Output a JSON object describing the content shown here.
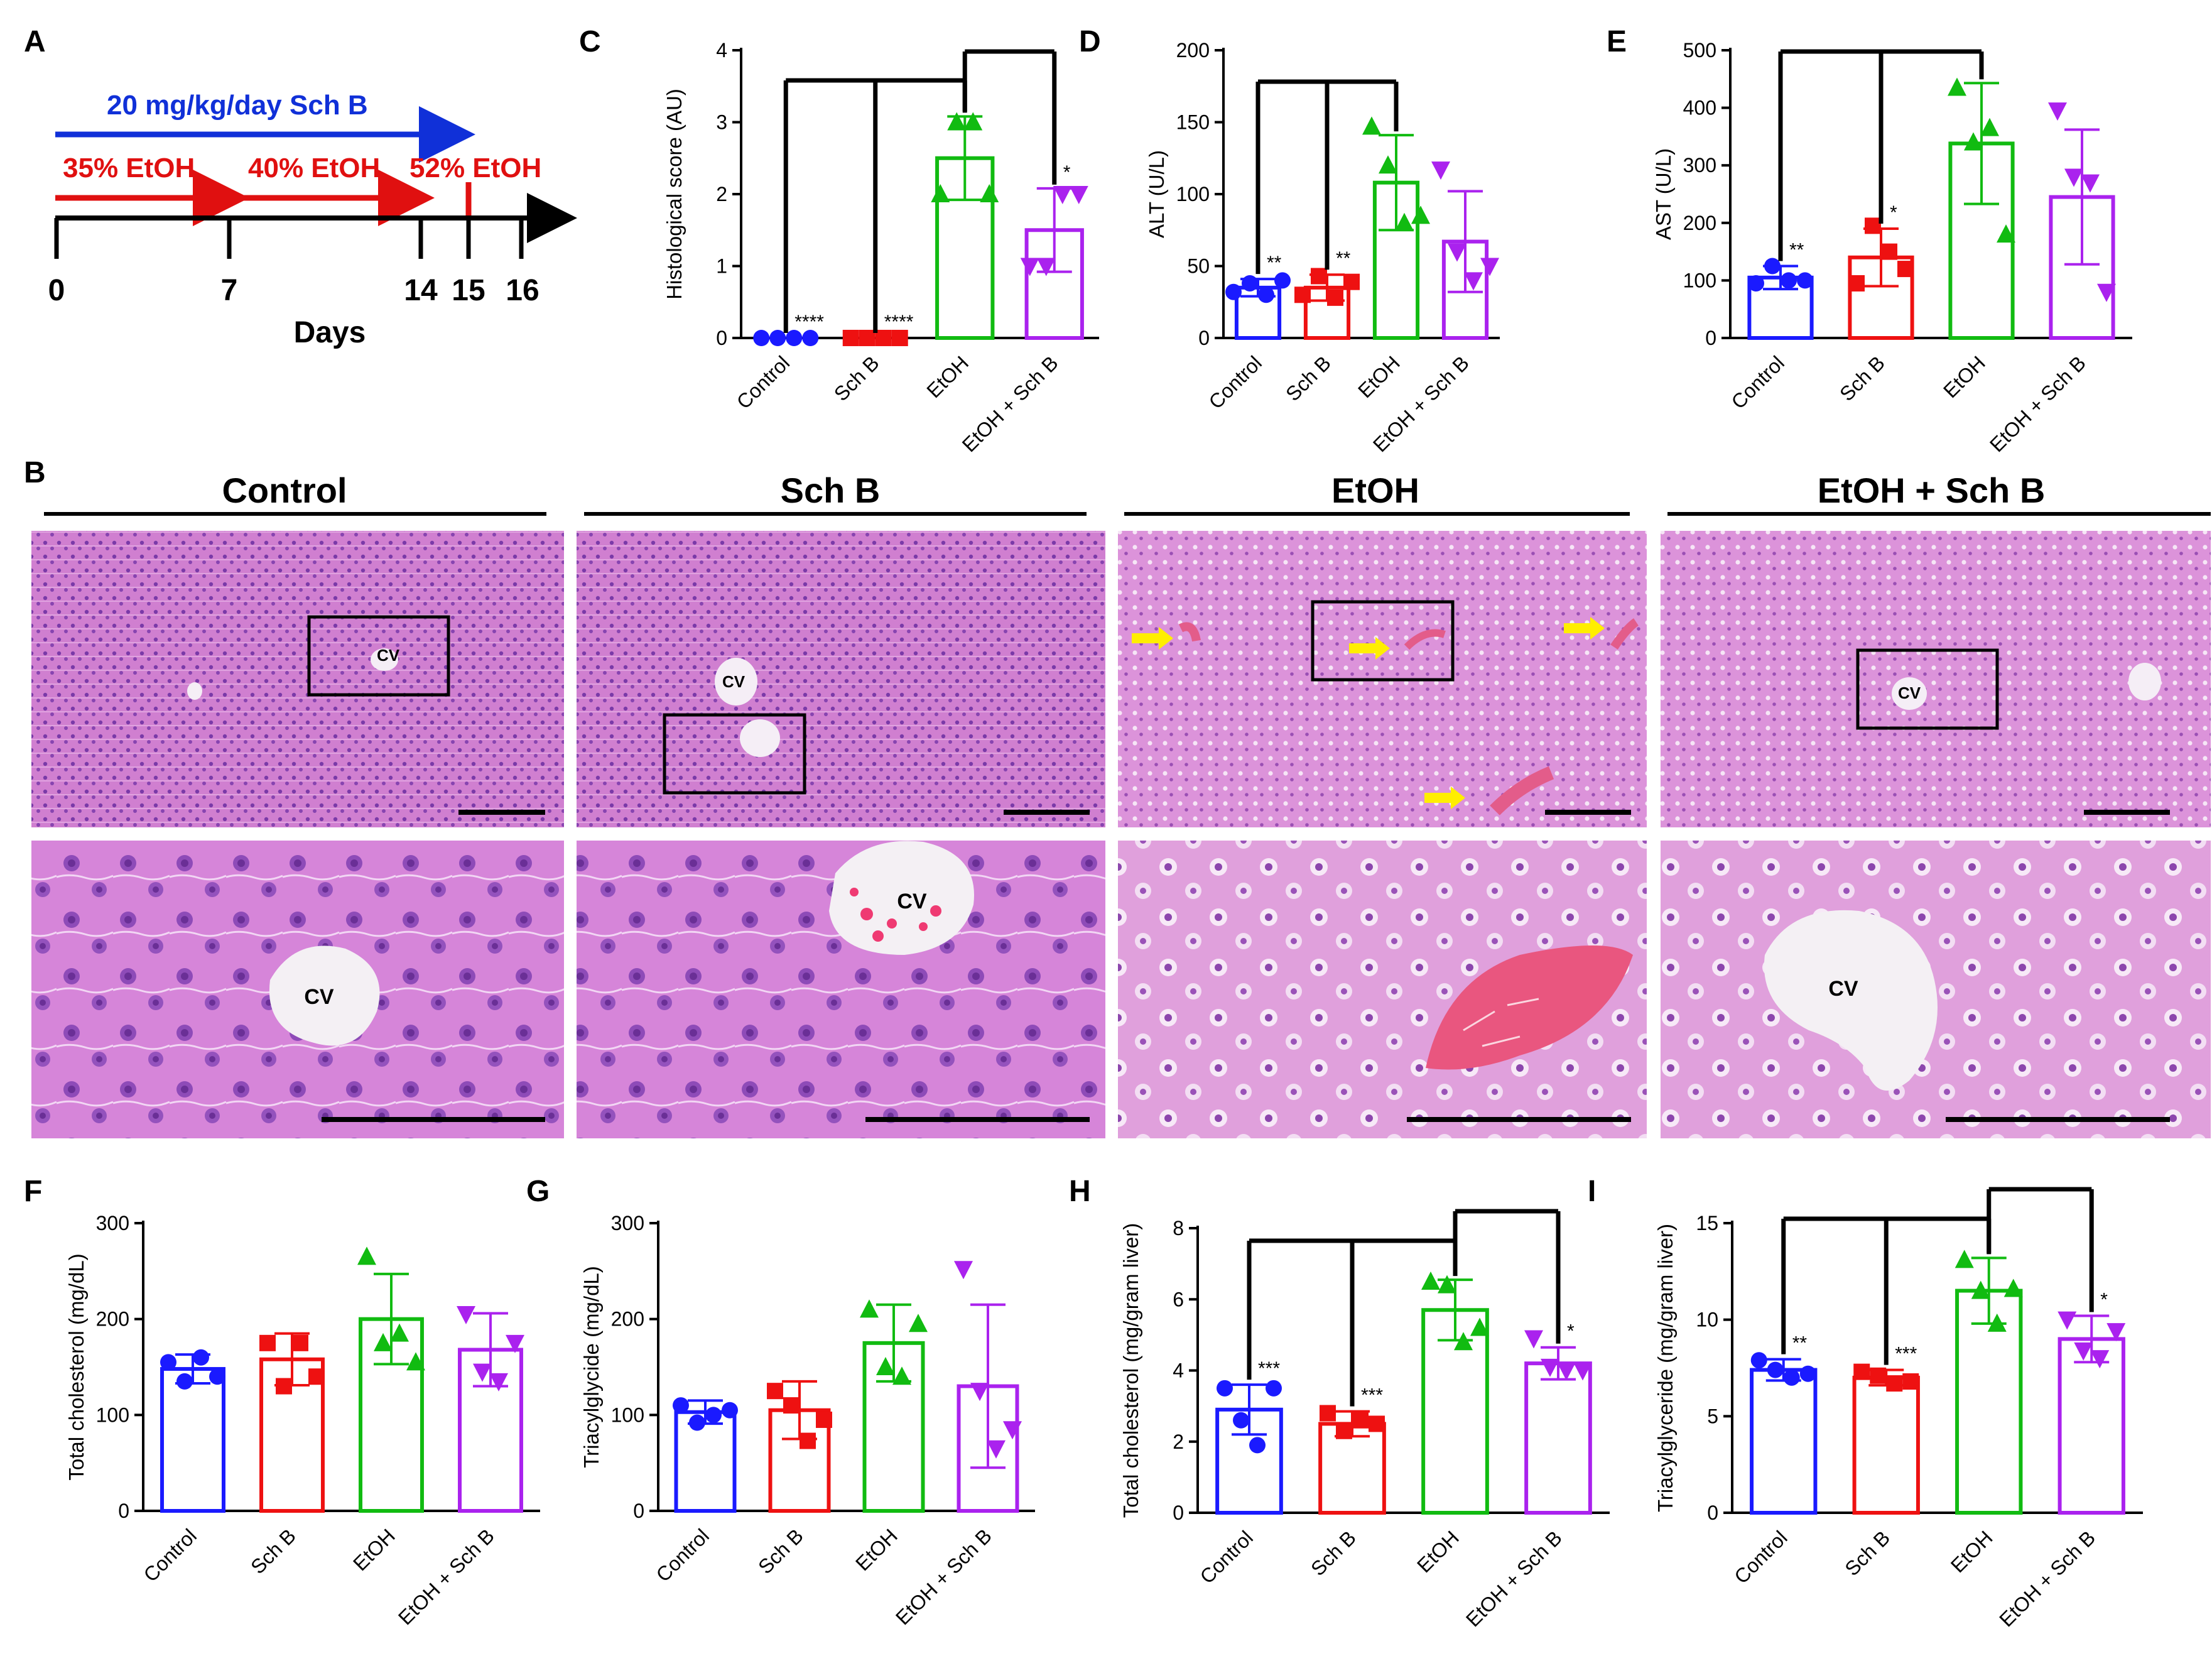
{
  "figure": {
    "panel_labels": [
      "A",
      "B",
      "C",
      "D",
      "E",
      "F",
      "G",
      "H",
      "I"
    ],
    "timeline": {
      "dose_text": "20 mg/kg/day Sch B",
      "etoh_stages": [
        "35% EtOH",
        "40% EtOH",
        "52% EtOH"
      ],
      "day_ticks": [
        "0",
        "7",
        "14",
        "15",
        "16"
      ],
      "axis_label": "Days",
      "colors": {
        "dose": "#1030d8",
        "etoh": "#e01010",
        "axis": "#000000"
      }
    },
    "histology": {
      "groups": [
        "Control",
        "Sch B",
        "EtOH",
        "EtOH + Sch B"
      ],
      "cv_label": "CV"
    },
    "groups": [
      "Control",
      "Sch B",
      "EtOH",
      "EtOH + Sch B"
    ],
    "group_colors": [
      "#1a1aff",
      "#ee1111",
      "#11bb11",
      "#aa22ee"
    ],
    "group_markers": [
      "circle",
      "square",
      "triangle-up",
      "triangle-down"
    ]
  },
  "chart_data": [
    {
      "panel": "C",
      "type": "bar",
      "ylabel": "Histological score (AU)",
      "ylim": [
        0,
        4
      ],
      "yticks": [
        "0",
        "1",
        "2",
        "3",
        "4"
      ],
      "categories": [
        "Control",
        "Sch B",
        "EtOH",
        "EtOH + Sch B"
      ],
      "values": [
        0,
        0,
        2.5,
        1.5
      ],
      "sd": [
        0,
        0,
        0.58,
        0.58
      ],
      "points": [
        [
          0,
          0,
          0,
          0
        ],
        [
          0,
          0,
          0,
          0
        ],
        [
          2,
          3,
          3,
          2
        ],
        [
          1,
          1,
          2,
          2
        ]
      ],
      "significance": [
        "****",
        "****",
        "",
        "*"
      ],
      "brackets": "Control, Sch B vs EtOH; EtOH vs EtOH + Sch B"
    },
    {
      "panel": "D",
      "type": "bar",
      "ylabel": "ALT (U/L)",
      "ylim": [
        0,
        200
      ],
      "yticks": [
        "0",
        "50",
        "100",
        "150",
        "200"
      ],
      "categories": [
        "Control",
        "Sch B",
        "EtOH",
        "EtOH + Sch B"
      ],
      "values": [
        35,
        35,
        108,
        67
      ],
      "sd": [
        6,
        9,
        33,
        35
      ],
      "points": [
        [
          32,
          38,
          30,
          40
        ],
        [
          30,
          43,
          28,
          39
        ],
        [
          147,
          120,
          80,
          85
        ],
        [
          117,
          60,
          40,
          50
        ]
      ],
      "significance": [
        "**",
        "**",
        "",
        ""
      ],
      "brackets": "Control, Sch B vs EtOH"
    },
    {
      "panel": "E",
      "type": "bar",
      "ylabel": "AST (U/L)",
      "ylim": [
        0,
        500
      ],
      "yticks": [
        "0",
        "100",
        "200",
        "300",
        "400",
        "500"
      ],
      "categories": [
        "Control",
        "Sch B",
        "EtOH",
        "EtOH + Sch B"
      ],
      "values": [
        105,
        140,
        338,
        245
      ],
      "sd": [
        20,
        50,
        105,
        117
      ],
      "points": [
        [
          95,
          125,
          100,
          100
        ],
        [
          95,
          195,
          150,
          120
        ],
        [
          435,
          340,
          365,
          180
        ],
        [
          395,
          280,
          270,
          80
        ]
      ],
      "significance": [
        "**",
        "*",
        "",
        ""
      ],
      "brackets": "Control, Sch B vs EtOH"
    },
    {
      "panel": "F",
      "type": "bar",
      "ylabel": "Total cholesterol (mg/dL)",
      "ylim": [
        0,
        300
      ],
      "yticks": [
        "0",
        "100",
        "200",
        "300"
      ],
      "categories": [
        "Control",
        "Sch B",
        "EtOH",
        "EtOH + Sch B"
      ],
      "values": [
        148,
        158,
        200,
        168
      ],
      "sd": [
        15,
        27,
        47,
        38
      ],
      "points": [
        [
          155,
          135,
          160,
          140
        ],
        [
          175,
          130,
          175,
          140
        ],
        [
          265,
          175,
          185,
          155
        ],
        [
          205,
          145,
          135,
          175
        ]
      ],
      "significance": [
        "",
        "",
        "",
        ""
      ]
    },
    {
      "panel": "G",
      "type": "bar",
      "ylabel": "Triacylglycide (mg/dL)",
      "ylim": [
        0,
        300
      ],
      "yticks": [
        "0",
        "100",
        "200",
        "300"
      ],
      "categories": [
        "Control",
        "Sch B",
        "EtOH",
        "EtOH + Sch B"
      ],
      "values": [
        103,
        105,
        175,
        130
      ],
      "sd": [
        12,
        30,
        40,
        85
      ],
      "points": [
        [
          110,
          92,
          100,
          105
        ],
        [
          125,
          110,
          73,
          95
        ],
        [
          210,
          150,
          140,
          195
        ],
        [
          252,
          125,
          65,
          85
        ]
      ],
      "significance": [
        "",
        "",
        "",
        ""
      ]
    },
    {
      "panel": "H",
      "type": "bar",
      "ylabel": "Total cholesterol (mg/gram liver)",
      "ylim": [
        0,
        8
      ],
      "yticks": [
        "0",
        "2",
        "4",
        "6",
        "8"
      ],
      "categories": [
        "Control",
        "Sch B",
        "EtOH",
        "EtOH + Sch B"
      ],
      "values": [
        2.9,
        2.5,
        5.7,
        4.2
      ],
      "sd": [
        0.7,
        0.35,
        0.85,
        0.45
      ],
      "points": [
        [
          3.5,
          2.6,
          1.9,
          3.5
        ],
        [
          2.8,
          2.3,
          2.6,
          2.5
        ],
        [
          6.5,
          6.4,
          4.8,
          5.2
        ],
        [
          4.9,
          4.1,
          4.0,
          4.0
        ]
      ],
      "significance": [
        "***",
        "***",
        "",
        "*"
      ],
      "brackets": "Control, Sch B vs EtOH; EtOH vs EtOH + Sch B"
    },
    {
      "panel": "I",
      "type": "bar",
      "ylabel": "Triacylglyceride (mg/gram liver)",
      "ylim": [
        0,
        15
      ],
      "yticks": [
        "0",
        "5",
        "10",
        "15"
      ],
      "categories": [
        "Control",
        "Sch B",
        "EtOH",
        "EtOH + Sch B"
      ],
      "values": [
        7.4,
        7.0,
        11.5,
        9.0
      ],
      "sd": [
        0.55,
        0.4,
        1.7,
        1.2
      ],
      "points": [
        [
          7.9,
          7.4,
          7.0,
          7.2
        ],
        [
          7.3,
          7.1,
          6.7,
          6.8
        ],
        [
          13.1,
          11.5,
          9.8,
          11.6
        ],
        [
          10.0,
          8.4,
          8.0,
          9.4
        ]
      ],
      "significance": [
        "**",
        "***",
        "",
        "*"
      ],
      "brackets": "Control, Sch B vs EtOH; EtOH vs EtOH + Sch B"
    }
  ]
}
